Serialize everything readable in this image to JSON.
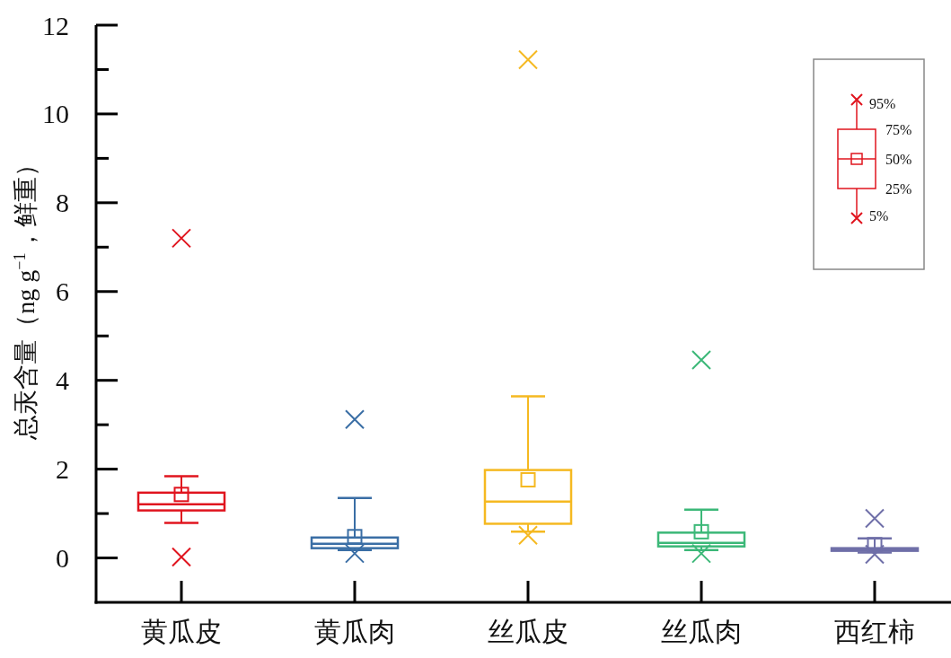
{
  "chart_data": {
    "type": "box",
    "ylabel": "总汞含量（ng g$^{−1}$，鲜重）",
    "categories": [
      "黄瓜皮",
      "黄瓜肉",
      "丝瓜皮",
      "丝瓜肉",
      "西红柿"
    ],
    "colors": [
      "#e0141e",
      "#3a6ea5",
      "#f5b921",
      "#3cb878",
      "#6f6fa8"
    ],
    "boxes": [
      {
        "low": 0.79,
        "q1": 1.07,
        "median": 1.21,
        "q3": 1.47,
        "high": 1.84,
        "mean": 1.43,
        "outliers": [
          7.2,
          0.02
        ]
      },
      {
        "low": 0.18,
        "q1": 0.22,
        "median": 0.32,
        "q3": 0.46,
        "high": 1.35,
        "mean": 0.48,
        "outliers": [
          3.12,
          0.1
        ]
      },
      {
        "low": 0.59,
        "q1": 0.77,
        "median": 1.27,
        "q3": 1.98,
        "high": 3.64,
        "mean": 1.76,
        "outliers": [
          11.22,
          0.51
        ]
      },
      {
        "low": 0.18,
        "q1": 0.26,
        "median": 0.34,
        "q3": 0.57,
        "high": 1.09,
        "mean": 0.59,
        "outliers": [
          4.46,
          0.1
        ]
      },
      {
        "low": 0.12,
        "q1": 0.16,
        "median": 0.19,
        "q3": 0.22,
        "high": 0.44,
        "mean": 0.3,
        "outliers": [
          0.89,
          0.08
        ]
      }
    ],
    "ylim": [
      -1,
      12
    ],
    "yticks": [
      0,
      {
        "value": 1,
        "label": null
      },
      2,
      {
        "value": 3,
        "label": null
      },
      4,
      {
        "value": 5,
        "label": null
      },
      6,
      {
        "value": 7,
        "label": null
      },
      8,
      {
        "value": 9,
        "label": null
      },
      10,
      {
        "value": 11,
        "label": null
      },
      12
    ],
    "marker": "cross",
    "grid": false,
    "annotations": [
      "95%",
      "75%",
      "50%",
      "25%",
      "5%"
    ]
  }
}
